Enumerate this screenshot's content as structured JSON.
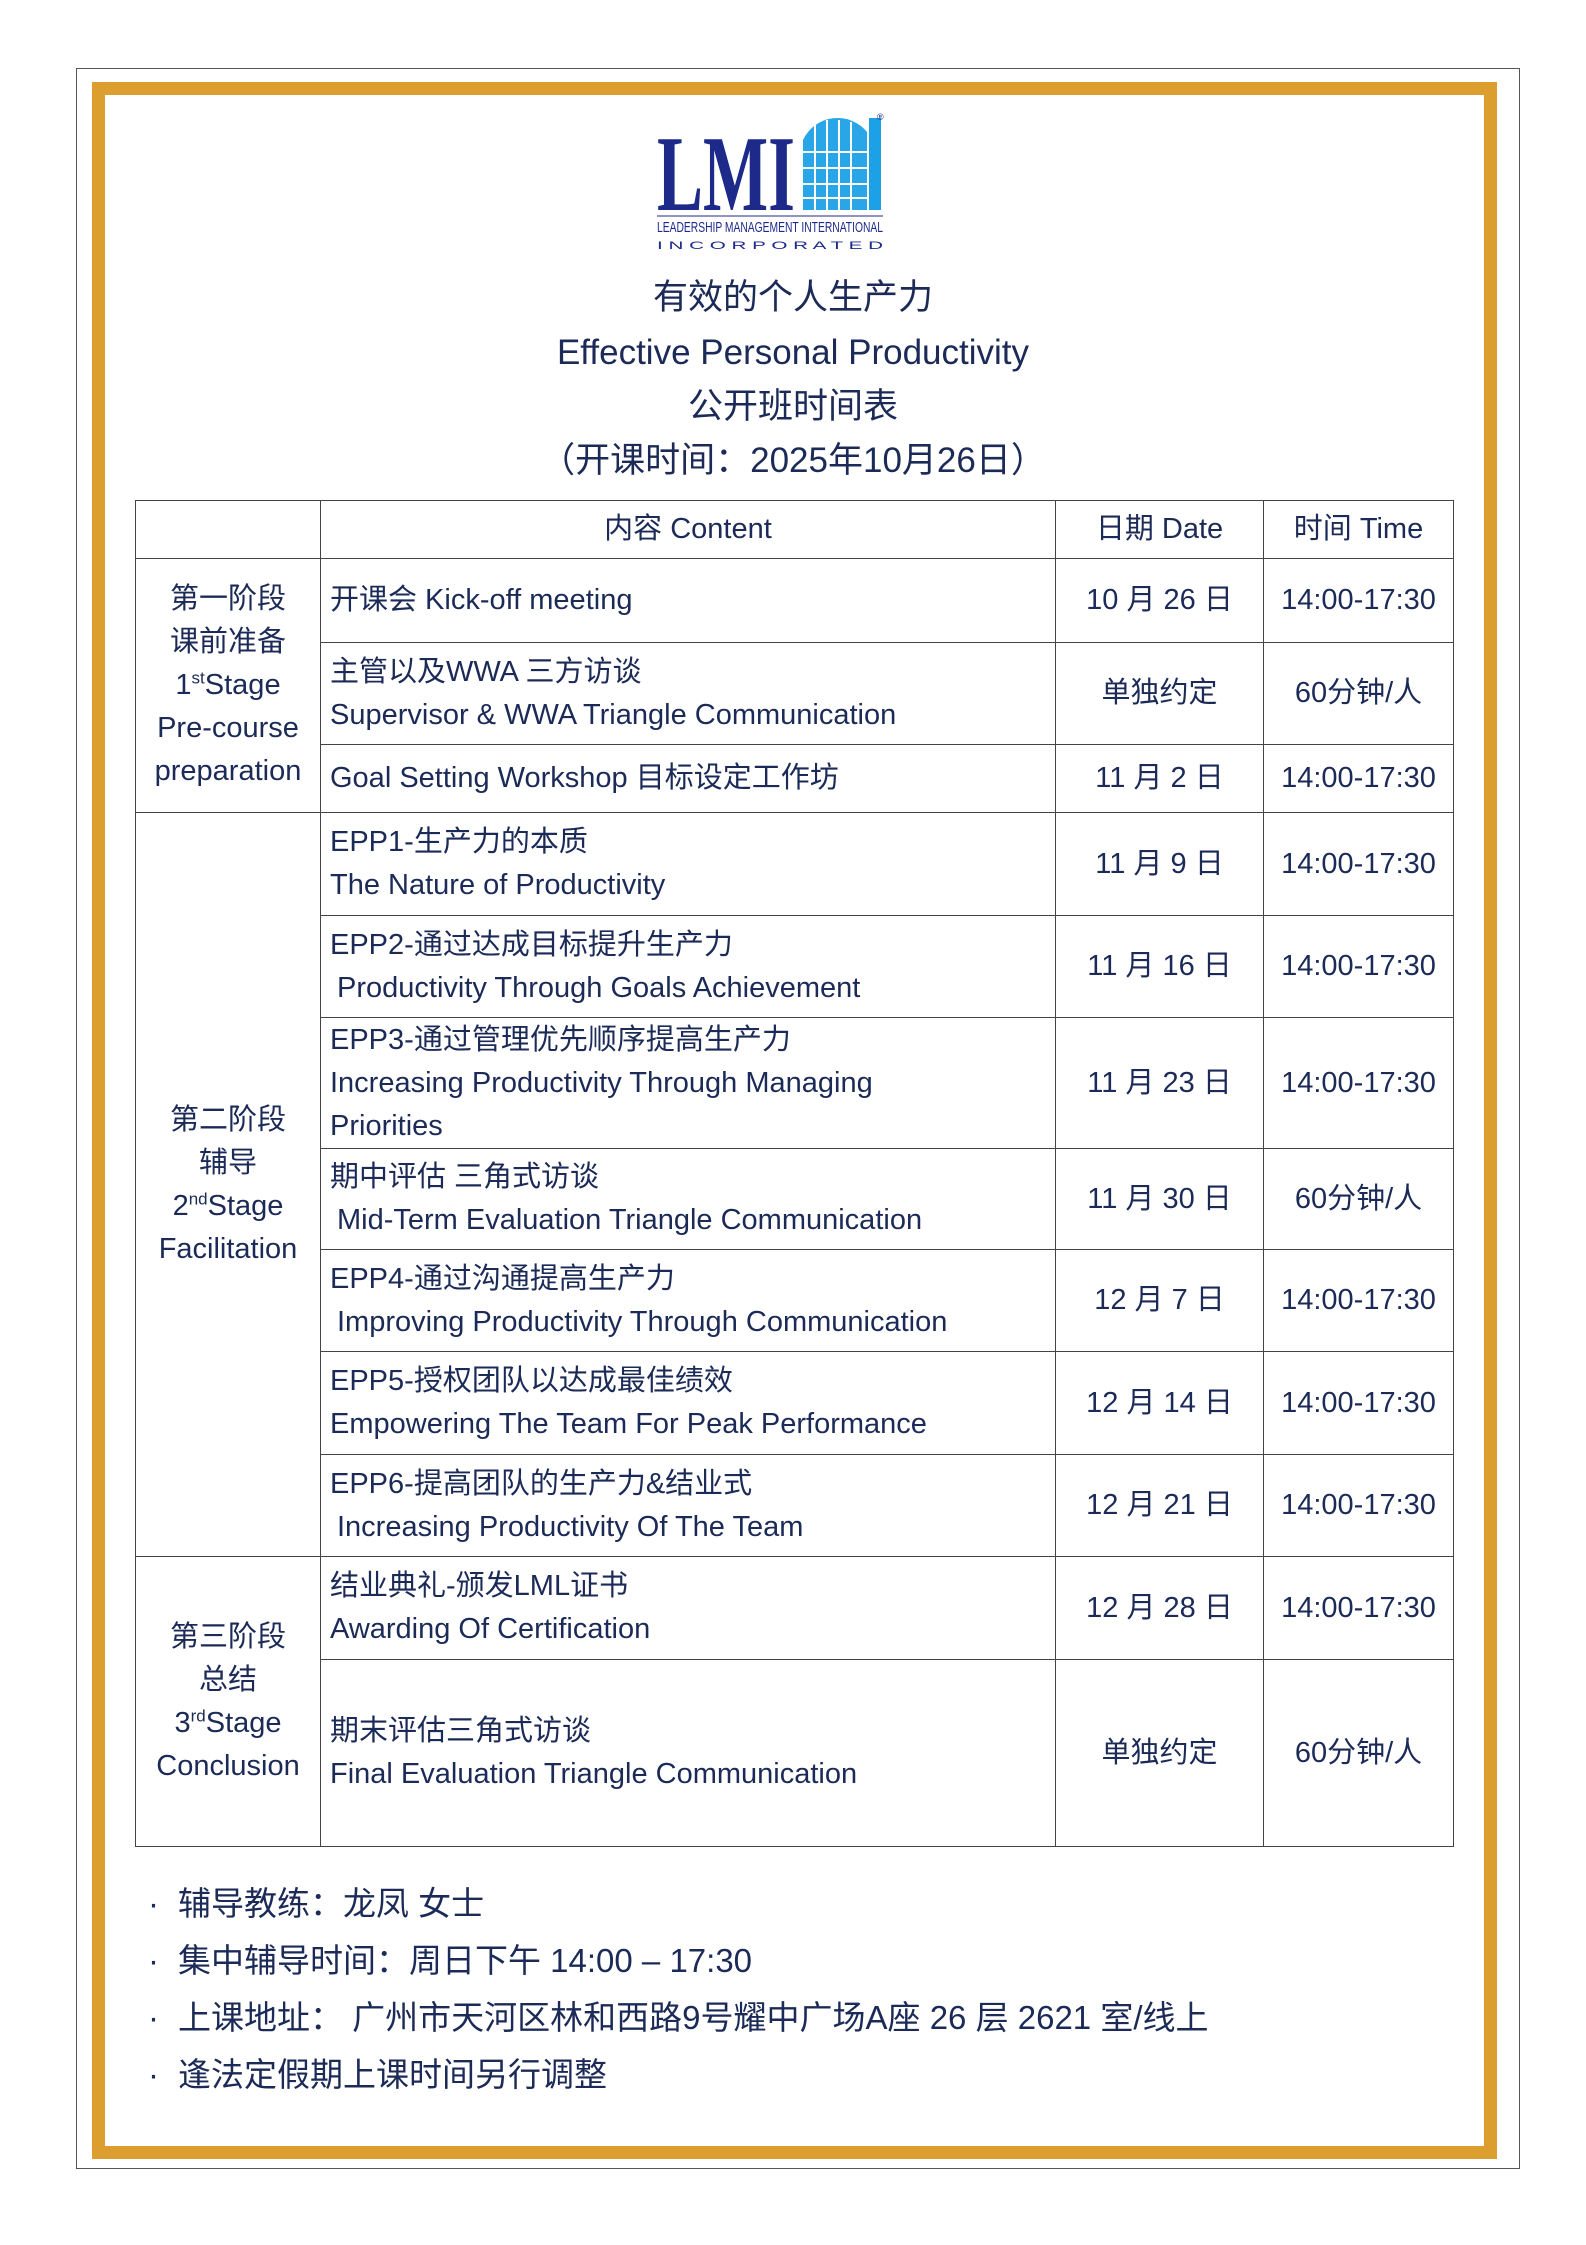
{
  "logo": {
    "wordmark": "LMI",
    "line1": "LEADERSHIP MANAGEMENT INTERNATIONAL",
    "line2": "I N C O R P O R A T E D",
    "registered": "®",
    "colors": {
      "wordmark": "#1e2a8a",
      "globe": "#1da1e6"
    }
  },
  "header": {
    "title_cn": "有效的个人生产力",
    "title_en": "Effective Personal Productivity",
    "subtitle": "公开班时间表",
    "start_date": "（开课时间：2025年10月26日）"
  },
  "table": {
    "columns": [
      "",
      "内容 Content",
      "日期 Date",
      "时间 Time"
    ],
    "stages": [
      {
        "cn_lines": [
          "第一阶段",
          "课前准备"
        ],
        "ordinal": "1",
        "suffix": "st",
        "stage_word": "Stage",
        "en_lines": [
          "Pre-course",
          "preparation"
        ],
        "rows": [
          {
            "lines": [
              "开课会 Kick-off meeting"
            ],
            "bold": false,
            "date": "10 月 26 日",
            "time": "14:00-17:30",
            "h": 84
          },
          {
            "lines": [
              "主管以及WWA 三方访谈",
              "Supervisor & WWA Triangle Communication"
            ],
            "bold": true,
            "date": "单独约定",
            "time": "60分钟/人",
            "date_bold": true,
            "h": 102
          },
          {
            "lines": [
              "Goal Setting Workshop 目标设定工作坊"
            ],
            "bold": false,
            "date": "11 月 2 日",
            "time": "14:00-17:30",
            "h": 68
          }
        ]
      },
      {
        "cn_lines": [
          "第二阶段",
          "辅导"
        ],
        "ordinal": "2",
        "suffix": "nd",
        "stage_word": "Stage",
        "en_lines": [
          "Facilitation"
        ],
        "rows": [
          {
            "lines": [
              "EPP1-生产力的本质",
              "The Nature of Productivity"
            ],
            "bold": false,
            "date": "11 月 9 日",
            "time": "14:00-17:30",
            "h": 103
          },
          {
            "lines": [
              "EPP2-通过达成目标提升生产力",
              " Productivity Through Goals Achievement"
            ],
            "bold": false,
            "date": "11 月 16 日",
            "time": "14:00-17:30",
            "h": 102
          },
          {
            "lines": [
              "EPP3-通过管理优先顺序提高生产力",
              "Increasing Productivity Through Managing",
              "Priorities"
            ],
            "bold": false,
            "date": "11 月 23 日",
            "time": "14:00-17:30",
            "h": 131
          },
          {
            "lines": [
              "期中评估 三角式访谈",
              " Mid-Term Evaluation Triangle Communication"
            ],
            "bold": true,
            "date": "11 月 30 日",
            "time": "60分钟/人",
            "date_bold": true,
            "h": 101
          },
          {
            "lines": [
              "EPP4-通过沟通提高生产力",
              " Improving Productivity Through Communication"
            ],
            "bold": false,
            "date": "12 月 7 日",
            "time": "14:00-17:30",
            "h": 102
          },
          {
            "lines": [
              "EPP5-授权团队以达成最佳绩效",
              "Empowering The Team For Peak Performance"
            ],
            "bold": false,
            "date": "12 月 14 日",
            "time": "14:00-17:30",
            "h": 103
          },
          {
            "lines": [
              "EPP6-提高团队的生产力&结业式",
              " Increasing Productivity Of The Team"
            ],
            "bold": false,
            "date": "12 月 21 日",
            "time": "14:00-17:30",
            "h": 102
          }
        ]
      },
      {
        "cn_lines": [
          "第三阶段",
          "总结"
        ],
        "ordinal": "3",
        "suffix": "rd",
        "stage_word": "Stage",
        "en_lines": [
          "Conclusion"
        ],
        "rows": [
          {
            "lines": [
              "结业典礼-颁发LML证书",
              "Awarding Of Certification"
            ],
            "bold": false,
            "date": "12 月 28 日",
            "time": "14:00-17:30",
            "h": 103
          },
          {
            "lines": [
              "期末评估三角式访谈",
              "Final Evaluation Triangle Communication"
            ],
            "bold": true,
            "date": "单独约定",
            "time": "60分钟/人",
            "date_bold": true,
            "h": 187
          }
        ]
      }
    ]
  },
  "notes": {
    "bullet": "·",
    "items": [
      "辅导教练：龙凤 女士",
      "集中辅导时间：周日下午 14:00 – 17:30",
      "上课地址： 广州市天河区林和西路9号耀中广场A座 26 层 2621 室/线上",
      "逢法定假期上课时间另行调整"
    ]
  },
  "colors": {
    "text": "#1b2a57",
    "frame_gold": "#DD9E30"
  }
}
